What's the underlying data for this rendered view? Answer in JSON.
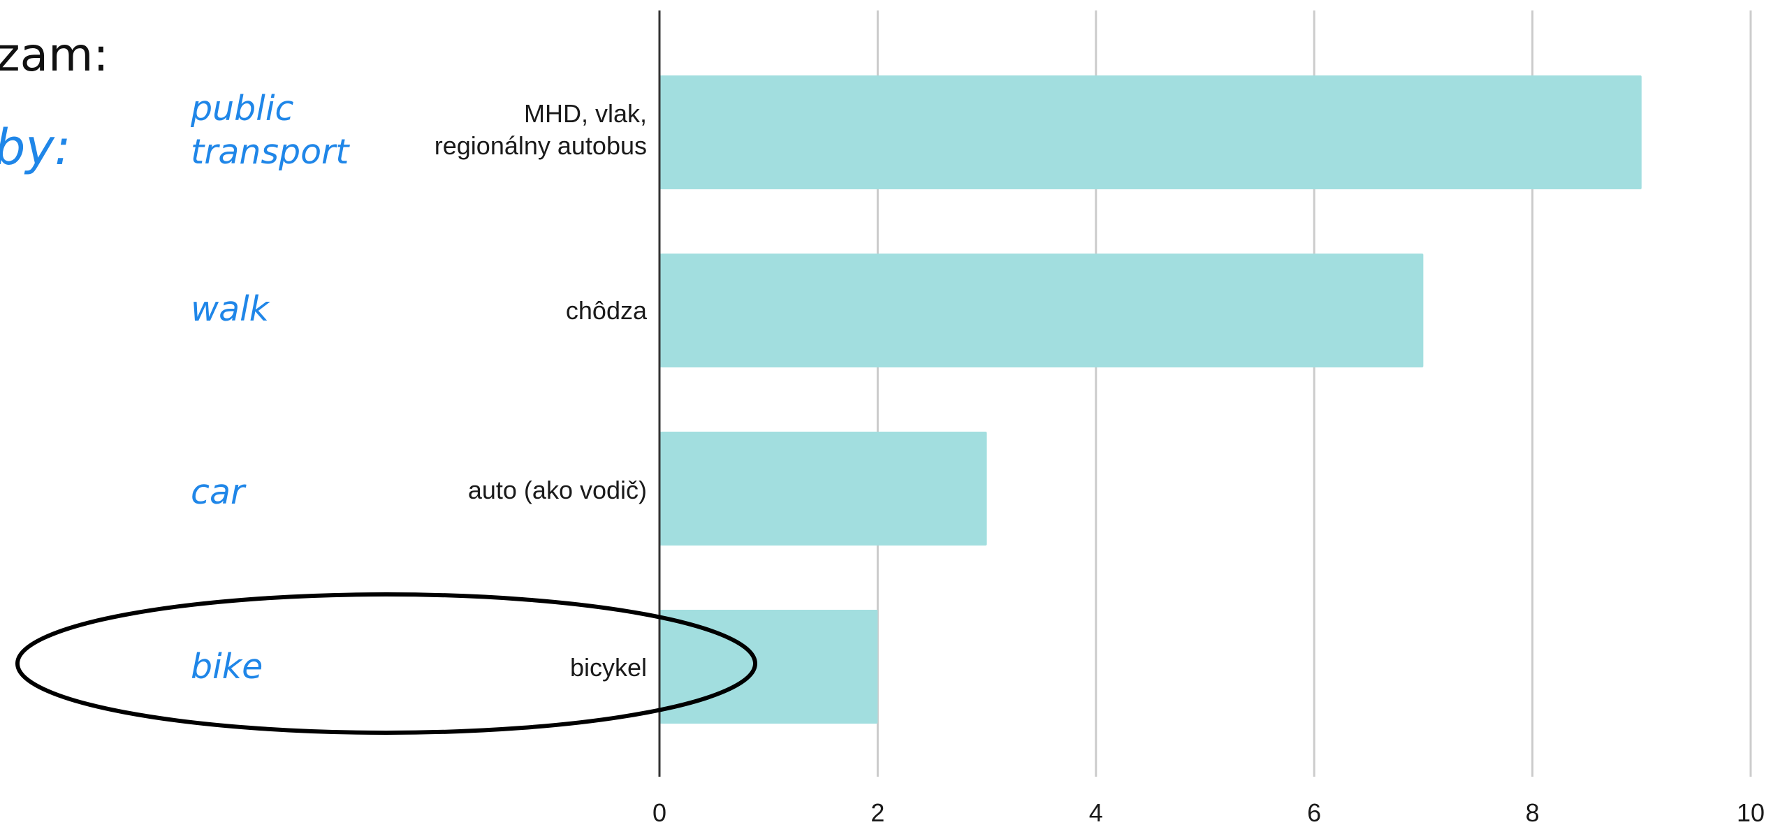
{
  "heading": {
    "line1": "zam:",
    "line2": "by:"
  },
  "english_labels": [
    "public\ntransport",
    "walk",
    "car",
    "bike"
  ],
  "highlight": {
    "target": "bike",
    "color": "#000000"
  },
  "colors": {
    "bar": "#a2dedf",
    "grid": "#cccccc",
    "axis": "#333333",
    "accent": "#1f86e8"
  },
  "chart_data": {
    "type": "bar",
    "orientation": "horizontal",
    "categories": [
      "MHD, vlak,\nregionálny autobus",
      "chôdza",
      "auto (ako vodič)",
      "bicykel"
    ],
    "values": [
      9,
      7,
      3,
      2
    ],
    "xlim": [
      0,
      10
    ],
    "xticks": [
      0,
      2,
      4,
      6,
      8,
      10
    ],
    "grid": true,
    "title": "",
    "xlabel": "",
    "ylabel": ""
  }
}
